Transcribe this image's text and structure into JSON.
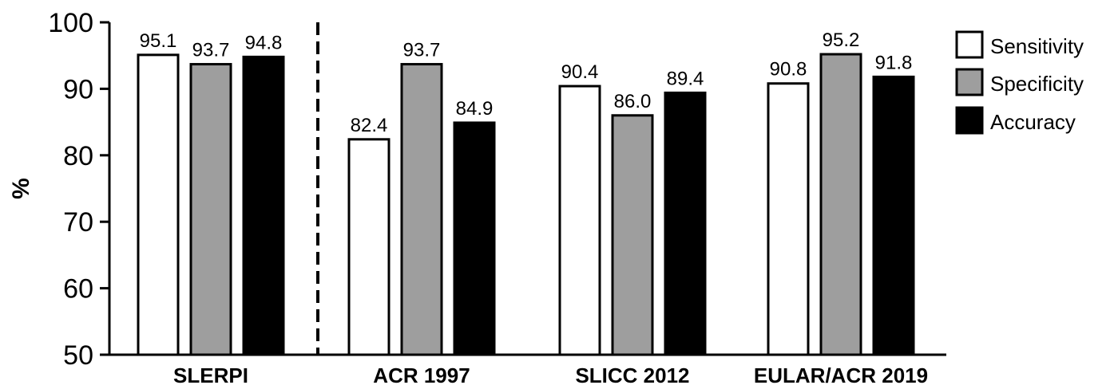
{
  "chart_data": {
    "type": "bar",
    "categories": [
      "SLERPI",
      "ACR 1997",
      "SLICC 2012",
      "EULAR/ACR 2019"
    ],
    "series": [
      {
        "name": "Sensitivity",
        "values": [
          95.1,
          82.4,
          90.4,
          90.8
        ],
        "color": "#ffffff"
      },
      {
        "name": "Specificity",
        "values": [
          93.7,
          93.7,
          86.0,
          95.2
        ],
        "color": "#9e9e9e"
      },
      {
        "name": "Accuracy",
        "values": [
          94.8,
          84.9,
          89.4,
          91.8
        ],
        "color": "#000000"
      }
    ],
    "data_labels": [
      [
        "95.1",
        "82.4",
        "90.4",
        "90.8"
      ],
      [
        "93.7",
        "93.7",
        "86.0",
        "95.2"
      ],
      [
        "94.8",
        "84.9",
        "89.4",
        "91.8"
      ]
    ],
    "ylabel": "%",
    "xlabel": "",
    "ylim": [
      50,
      100
    ],
    "yticks": [
      "50",
      "60",
      "70",
      "80",
      "90",
      "100"
    ],
    "grid": false,
    "legend_position": "top-right",
    "separator_after_category": "SLERPI",
    "separator_style": "dashed"
  }
}
